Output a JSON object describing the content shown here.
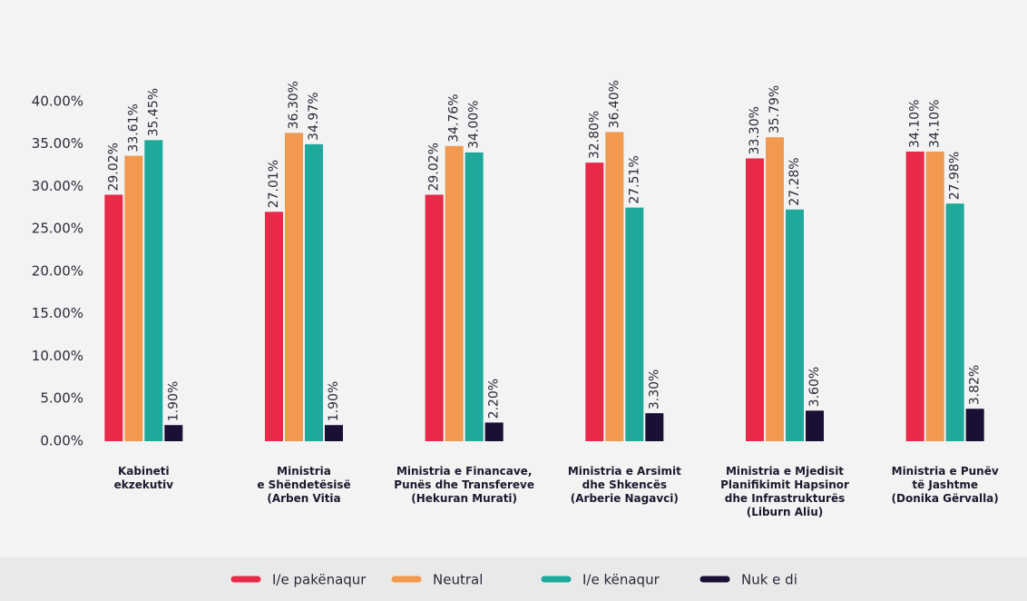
{
  "chart_data": {
    "type": "bar",
    "categories": [
      "Kabineti\nekzekutiv",
      "Ministria\ne Shëndetësisë\n(Arben Vitia",
      "Ministria e Financave,\nPunës dhe Transfereve\n(Hekuran Murati)",
      "Ministria e Arsimit\ndhe Shkencës\n(Arberie Nagavci)",
      "Ministria e Mjedisit\nPlanifikimit Hapsinor\ndhe Infrastrukturës\n(Liburn Aliu)",
      "Ministria e Punëv\ntë Jashtme\n(Donika Gërvalla)"
    ],
    "series": [
      {
        "name": "I/e pakënaqur",
        "color": "#e8294a",
        "values": [
          29.02,
          27.01,
          29.02,
          32.8,
          33.3,
          34.1
        ],
        "value_labels": [
          "29.02%",
          "27.01%",
          "29.02%",
          "32.80%",
          "33.30%",
          "34.10%"
        ]
      },
      {
        "name": "Neutral",
        "color": "#f0994f",
        "values": [
          33.61,
          36.3,
          34.76,
          36.4,
          35.79,
          34.1
        ],
        "value_labels": [
          "33.61%",
          "36.30%",
          "34.76%",
          "36.40%",
          "35.79%",
          "34.10%"
        ]
      },
      {
        "name": "I/e kënaqur",
        "color": "#1ea99a",
        "values": [
          35.45,
          34.97,
          34.0,
          27.51,
          27.28,
          27.98
        ],
        "value_labels": [
          "35.45%",
          "34.97%",
          "34.00%",
          "27.51%",
          "27.28%",
          "27.98%"
        ]
      },
      {
        "name": "Nuk e di",
        "color": "#1a0f35",
        "values": [
          1.9,
          1.9,
          2.2,
          3.3,
          3.6,
          3.82
        ],
        "value_labels": [
          "1.90%",
          "1.90%",
          "2.20%",
          "3.30%",
          "3.60%",
          "3.82%"
        ]
      }
    ],
    "ylim": [
      0,
      45
    ],
    "yticks": [
      {
        "value": 0,
        "label": "0.00%"
      },
      {
        "value": 5,
        "label": "5.00%"
      },
      {
        "value": 10,
        "label": "10.00%"
      },
      {
        "value": 15,
        "label": "15.00%"
      },
      {
        "value": 20,
        "label": "20.00%"
      },
      {
        "value": 25,
        "label": "25.00%"
      },
      {
        "value": 30,
        "label": "30.00%"
      },
      {
        "value": 35,
        "label": "35.00%"
      },
      {
        "value": 40,
        "label": "40.00%"
      }
    ],
    "grid": false,
    "legend": "bottom"
  }
}
